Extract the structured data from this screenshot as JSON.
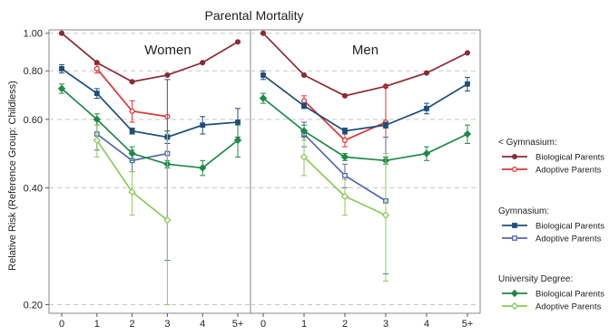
{
  "chart_data": {
    "type": "line",
    "title": "Parental Mortality",
    "ylabel": "Relative Risk (Reference Group: Childless)",
    "y_scale": "log",
    "ylim": [
      0.19,
      1.02
    ],
    "y_ticks": [
      {
        "value": 1.0,
        "label": "1.00"
      },
      {
        "value": 0.8,
        "label": "0.80"
      },
      {
        "value": 0.6,
        "label": "0.60"
      },
      {
        "value": 0.4,
        "label": "0.40"
      },
      {
        "value": 0.2,
        "label": "0.20"
      }
    ],
    "categories": [
      "0",
      "1",
      "2",
      "3",
      "4",
      "5+"
    ],
    "grid": true,
    "legend_placement": "right",
    "legend_groups": [
      {
        "title": "< Gymnasium:",
        "items": [
          {
            "label": "Biological Parents",
            "color": "#8b2b33",
            "marker": "circle-filled"
          },
          {
            "label": "Adoptive Parents",
            "color": "#e03434",
            "marker": "circle-open"
          }
        ]
      },
      {
        "title": "Gymnasium:",
        "items": [
          {
            "label": "Biological Parents",
            "color": "#1d4f7a",
            "marker": "square-filled"
          },
          {
            "label": "Adoptive Parents",
            "color": "#5566ad",
            "marker": "square-open"
          }
        ]
      },
      {
        "title": "University Degree:",
        "items": [
          {
            "label": "Biological Parents",
            "color": "#1e8a45",
            "marker": "diamond-filled"
          },
          {
            "label": "Adoptive Parents",
            "color": "#8ccb5c",
            "marker": "diamond-open"
          }
        ]
      }
    ],
    "panels": [
      {
        "title": "Women",
        "series": [
          {
            "group": "< Gymnasium",
            "type": "Biological Parents",
            "color": "#8b2b33",
            "marker": "circle",
            "filled": true,
            "x": [
              0,
              1,
              2,
              3,
              4,
              5
            ],
            "y": [
              1.0,
              0.84,
              0.75,
              0.78,
              0.84,
              0.95
            ],
            "lo": [
              null,
              null,
              null,
              null,
              null,
              null
            ],
            "hi": [
              null,
              null,
              null,
              null,
              null,
              null
            ]
          },
          {
            "group": "< Gymnasium",
            "type": "Adoptive Parents",
            "color": "#e03434",
            "marker": "circle",
            "filled": false,
            "x": [
              1,
              2,
              3
            ],
            "y": [
              0.81,
              0.63,
              0.61
            ],
            "lo": [
              0.79,
              0.59,
              0.33
            ],
            "hi": [
              0.83,
              0.67,
              0.76
            ]
          },
          {
            "group": "Gymnasium",
            "type": "Biological Parents",
            "color": "#1d4f7a",
            "marker": "square",
            "filled": true,
            "x": [
              0,
              1,
              2,
              3,
              4,
              5
            ],
            "y": [
              0.81,
              0.7,
              0.56,
              0.54,
              0.58,
              0.59
            ],
            "lo": [
              0.79,
              0.68,
              0.55,
              0.52,
              0.55,
              0.54
            ],
            "hi": [
              0.83,
              0.72,
              0.57,
              0.56,
              0.61,
              0.64
            ]
          },
          {
            "group": "Gymnasium",
            "type": "Adoptive Parents",
            "color": "#5566ad",
            "marker": "square",
            "filled": false,
            "x": [
              1,
              2,
              3
            ],
            "y": [
              0.55,
              0.47,
              0.49
            ],
            "lo": [
              0.5,
              0.44,
              0.26
            ],
            "hi": [
              0.6,
              0.5,
              0.76
            ]
          },
          {
            "group": "University Degree",
            "type": "Biological Parents",
            "color": "#1e8a45",
            "marker": "diamond",
            "filled": true,
            "x": [
              0,
              1,
              2,
              3,
              4,
              5
            ],
            "y": [
              0.72,
              0.6,
              0.49,
              0.46,
              0.45,
              0.53
            ],
            "lo": [
              0.7,
              0.58,
              0.47,
              0.45,
              0.43,
              0.48
            ],
            "hi": [
              0.74,
              0.62,
              0.51,
              0.47,
              0.47,
              0.58
            ]
          },
          {
            "group": "University Degree",
            "type": "Adoptive Parents",
            "color": "#8ccb5c",
            "marker": "diamond",
            "filled": false,
            "x": [
              1,
              2,
              3
            ],
            "y": [
              0.53,
              0.39,
              0.33
            ],
            "lo": [
              0.48,
              0.34,
              0.2
            ],
            "hi": [
              0.58,
              0.44,
              0.55
            ]
          }
        ]
      },
      {
        "title": "Men",
        "series": [
          {
            "group": "< Gymnasium",
            "type": "Biological Parents",
            "color": "#8b2b33",
            "marker": "circle",
            "filled": true,
            "x": [
              0,
              1,
              2,
              3,
              4,
              5
            ],
            "y": [
              1.0,
              0.78,
              0.69,
              0.73,
              0.79,
              0.89
            ],
            "lo": [
              null,
              null,
              null,
              null,
              null,
              null
            ],
            "hi": [
              null,
              null,
              null,
              null,
              null,
              null
            ]
          },
          {
            "group": "< Gymnasium",
            "type": "Adoptive Parents",
            "color": "#e03434",
            "marker": "circle",
            "filled": false,
            "x": [
              1,
              2,
              3
            ],
            "y": [
              0.67,
              0.53,
              0.59
            ],
            "lo": [
              0.65,
              0.51,
              0.48
            ],
            "hi": [
              0.69,
              0.56,
              0.73
            ]
          },
          {
            "group": "Gymnasium",
            "type": "Biological Parents",
            "color": "#1d4f7a",
            "marker": "square",
            "filled": true,
            "x": [
              0,
              1,
              2,
              3,
              4,
              5
            ],
            "y": [
              0.78,
              0.65,
              0.56,
              0.58,
              0.64,
              0.74
            ],
            "lo": [
              0.76,
              0.64,
              0.55,
              0.57,
              0.62,
              0.71
            ],
            "hi": [
              0.8,
              0.66,
              0.57,
              0.59,
              0.66,
              0.77
            ]
          },
          {
            "group": "Gymnasium",
            "type": "Adoptive Parents",
            "color": "#5566ad",
            "marker": "square",
            "filled": false,
            "x": [
              1,
              2,
              3
            ],
            "y": [
              0.55,
              0.43,
              0.37
            ],
            "lo": [
              0.51,
              0.4,
              0.24
            ],
            "hi": [
              0.59,
              0.46,
              0.54
            ]
          },
          {
            "group": "University Degree",
            "type": "Biological Parents",
            "color": "#1e8a45",
            "marker": "diamond",
            "filled": true,
            "x": [
              0,
              1,
              2,
              3,
              4,
              5
            ],
            "y": [
              0.68,
              0.56,
              0.48,
              0.47,
              0.49,
              0.55
            ],
            "lo": [
              0.66,
              0.54,
              0.47,
              0.46,
              0.47,
              0.52
            ],
            "hi": [
              0.7,
              0.58,
              0.49,
              0.48,
              0.51,
              0.58
            ]
          },
          {
            "group": "University Degree",
            "type": "Adoptive Parents",
            "color": "#8ccb5c",
            "marker": "diamond",
            "filled": false,
            "x": [
              1,
              2,
              3
            ],
            "y": [
              0.48,
              0.38,
              0.34
            ],
            "lo": [
              0.43,
              0.34,
              0.23
            ],
            "hi": [
              0.53,
              0.42,
              0.49
            ]
          }
        ]
      }
    ]
  }
}
